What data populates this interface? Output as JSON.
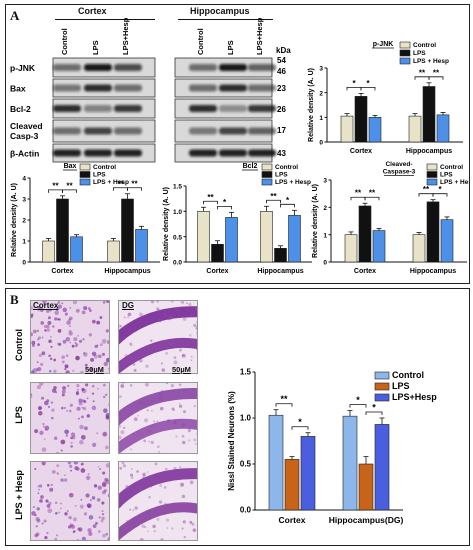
{
  "panel_labels": {
    "a": "A",
    "b": "B"
  },
  "blot": {
    "region_headers": [
      "Cortex",
      "Hippocampus"
    ],
    "lane_labels": [
      "Control",
      "LPS",
      "LPS+Hesp"
    ],
    "proteins": [
      "p-JNK",
      "Bax",
      "Bcl-2",
      "Cleaved Casp-3",
      "β-Actin"
    ],
    "kda_label": "kDa",
    "kda_values": [
      "54",
      "46",
      "23",
      "26",
      "17",
      "43"
    ]
  },
  "micrographs": {
    "col_headers": [
      "Cortex",
      "DG"
    ],
    "row_labels": [
      "Control",
      "LPS",
      "LPS + Hesp"
    ],
    "scale_label": "50µM"
  },
  "colors": {
    "control": "#e8e2c8",
    "lps": "#111111",
    "lps_hesp": "#4d90e8",
    "nissl_control": "#8db7ea",
    "nissl_lps": "#c8631a",
    "nissl_hesp": "#4a5ee0"
  },
  "chart_data": [
    {
      "type": "bar",
      "id": "pjnk",
      "title": "p-JNK",
      "categories": [
        "Cortex",
        "Hippocampus"
      ],
      "series": [
        {
          "name": "Control",
          "values": [
            1.05,
            1.05
          ]
        },
        {
          "name": "LPS",
          "values": [
            1.85,
            2.25
          ]
        },
        {
          "name": "LPS + Hesp",
          "values": [
            1.0,
            1.1
          ]
        }
      ],
      "errors": [
        [
          0.1,
          0.1
        ],
        [
          0.12,
          0.15
        ],
        [
          0.08,
          0.1
        ]
      ],
      "ylabel": "Relative density (A. U)",
      "ylim": [
        0,
        3
      ],
      "yticks": [
        "0",
        "1",
        "2",
        "3"
      ],
      "sig": [
        [
          "*",
          "*"
        ],
        [
          "**",
          "**"
        ]
      ],
      "legend": "top-right"
    },
    {
      "type": "bar",
      "id": "bax",
      "title": "Bax",
      "categories": [
        "Cortex",
        "Hippocampus"
      ],
      "series": [
        {
          "name": "Control",
          "values": [
            1.0,
            1.0
          ]
        },
        {
          "name": "LPS",
          "values": [
            3.0,
            3.0
          ]
        },
        {
          "name": "LPS + Hesp",
          "values": [
            1.2,
            1.55
          ]
        }
      ],
      "errors": [
        [
          0.12,
          0.12
        ],
        [
          0.15,
          0.25
        ],
        [
          0.1,
          0.15
        ]
      ],
      "ylabel": "Relative density (A. U)",
      "ylim": [
        0,
        4
      ],
      "yticks": [
        "0",
        "1",
        "2",
        "3",
        "4"
      ],
      "sig": [
        [
          "**",
          "**"
        ],
        [
          "**",
          "**"
        ]
      ],
      "legend": "top-right"
    },
    {
      "type": "bar",
      "id": "bcl2",
      "title": "Bcl2",
      "categories": [
        "Cortex",
        "Hippocampus"
      ],
      "series": [
        {
          "name": "Control",
          "values": [
            1.0,
            1.0
          ]
        },
        {
          "name": "LPS",
          "values": [
            0.35,
            0.27
          ]
        },
        {
          "name": "LPS + Hesp",
          "values": [
            0.88,
            0.92
          ]
        }
      ],
      "errors": [
        [
          0.08,
          0.1
        ],
        [
          0.07,
          0.05
        ],
        [
          0.1,
          0.1
        ]
      ],
      "ylabel": "Relative density (A. U)",
      "ylim": [
        0,
        1.5
      ],
      "yticks": [
        "0.0",
        "0.5",
        "1.0",
        "1.5"
      ],
      "sig": [
        [
          "**",
          "*"
        ],
        [
          "**",
          "*"
        ]
      ],
      "legend": "top-right"
    },
    {
      "type": "bar",
      "id": "casp3",
      "title": "Cleaved-Caspase-3",
      "title_lines": [
        "Cleaved-",
        "Caspase-3"
      ],
      "categories": [
        "Cortex",
        "Hippocampus"
      ],
      "series": [
        {
          "name": "Control",
          "values": [
            1.0,
            1.0
          ]
        },
        {
          "name": "LPS",
          "values": [
            2.05,
            2.2
          ]
        },
        {
          "name": "LPS + Hesp",
          "values": [
            1.15,
            1.55
          ]
        }
      ],
      "errors": [
        [
          0.1,
          0.08
        ],
        [
          0.1,
          0.08
        ],
        [
          0.08,
          0.1
        ]
      ],
      "ylabel": "Relative density (A. U)",
      "ylim": [
        0,
        3
      ],
      "yticks": [
        "0",
        "1",
        "2",
        "3"
      ],
      "sig": [
        [
          "**",
          "**"
        ],
        [
          "**",
          "*"
        ]
      ],
      "legend": "top-right"
    },
    {
      "type": "bar",
      "id": "nissl",
      "title": "",
      "categories": [
        "Cortex",
        "Hippocampus(DG)"
      ],
      "series": [
        {
          "name": "Control",
          "values": [
            1.03,
            1.02
          ]
        },
        {
          "name": "LPS",
          "values": [
            0.55,
            0.5
          ]
        },
        {
          "name": "LPS+Hesp",
          "values": [
            0.8,
            0.93
          ]
        }
      ],
      "errors": [
        [
          0.06,
          0.06
        ],
        [
          0.03,
          0.08
        ],
        [
          0.04,
          0.07
        ]
      ],
      "ylabel": "Nissl Stained Neurons (%)",
      "ylim": [
        0,
        1.5
      ],
      "yticks": [
        "0.0",
        "0.5",
        "1.0",
        "1.5"
      ],
      "sig": [
        [
          "**",
          "*"
        ],
        [
          "*",
          "*"
        ]
      ],
      "legend": "right"
    }
  ]
}
